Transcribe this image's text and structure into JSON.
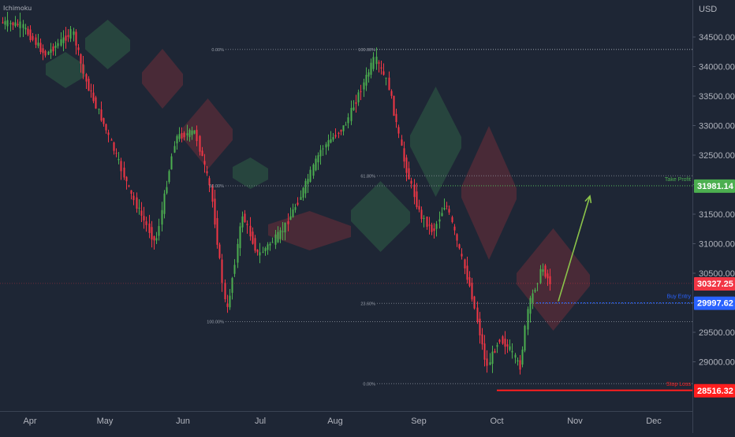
{
  "indicator": "Ichimoku",
  "chart_data": {
    "type": "candlestick",
    "currency": "USD",
    "y_axis": {
      "range": [
        28200,
        34900
      ],
      "ticks": [
        34500,
        34000,
        33500,
        33000,
        32500,
        32000,
        31500,
        31000,
        30500,
        30000,
        29500,
        29000
      ],
      "tick_labels": [
        "34500.00",
        "34000.00",
        "33500.00",
        "33000.00",
        "32500.00",
        "32000.00",
        "31500.00",
        "31000.00",
        "30500.00",
        "30000.00",
        "29500.00",
        "29000.00"
      ]
    },
    "x_axis": {
      "labels": [
        "Apr",
        "May",
        "Jun",
        "Jul",
        "Aug",
        "Sep",
        "Oct",
        "Nov",
        "Dec"
      ]
    },
    "grid": false,
    "trading_levels": [
      {
        "key": "take_profit",
        "label": "Take Profit",
        "value": 31981.14,
        "value_text": "31981.14",
        "color": "#4caf50"
      },
      {
        "key": "last",
        "label": "",
        "value": 30327.25,
        "value_text": "30327.25",
        "color": "#f23645"
      },
      {
        "key": "buy_entry",
        "label": "Buy Entry",
        "value": 29997.62,
        "value_text": "29997.62",
        "color": "#2962ff"
      },
      {
        "key": "stop_loss",
        "label": "Stop Loss",
        "value": 28516.32,
        "value_text": "28516.32",
        "color": "#ff1e1e"
      }
    ],
    "fib_retracements": [
      {
        "labels": [
          "0.00%",
          "50.00%",
          "100.00%"
        ],
        "values": [
          34290,
          31980,
          29680
        ]
      },
      {
        "labels": [
          "100.00%",
          "61.80%",
          "23.60%",
          "0.00%"
        ],
        "values": [
          34290,
          32150,
          29990,
          28630
        ]
      }
    ],
    "projection_arrow": {
      "from_value": 30000,
      "to_value": 31900
    },
    "colors": {
      "up": "#4caf50",
      "down": "#f23645",
      "cloud_bull": "#2f5e45",
      "cloud_bear": "#6e2e39",
      "background": "#1e2635"
    }
  }
}
